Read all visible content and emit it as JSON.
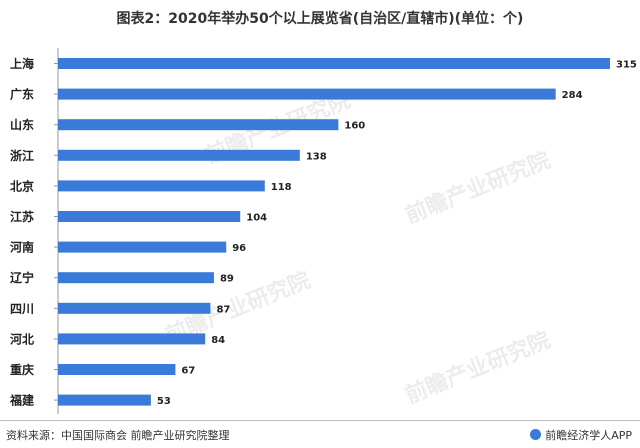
{
  "chart_data": {
    "type": "bar",
    "orientation": "horizontal",
    "title": "图表2：2020年举办50个以上展览省(自治区/直辖市)(单位：个)",
    "categories": [
      "上海",
      "广东",
      "山东",
      "浙江",
      "北京",
      "江苏",
      "河南",
      "辽宁",
      "四川",
      "河北",
      "重庆",
      "福建"
    ],
    "values": [
      315,
      284,
      160,
      138,
      118,
      104,
      96,
      89,
      87,
      84,
      67,
      53
    ],
    "bar_color": "#3a7ad8",
    "data_labels": true,
    "grid": false,
    "xlim": [
      0,
      315
    ]
  },
  "footer": {
    "source": "资料来源：中国国际商会 前瞻产业研究院整理",
    "brand": "前瞻经济学人APP",
    "brand_icon": "qianzhan-logo-icon"
  },
  "watermark": {
    "text": "前瞻产业研究院"
  }
}
